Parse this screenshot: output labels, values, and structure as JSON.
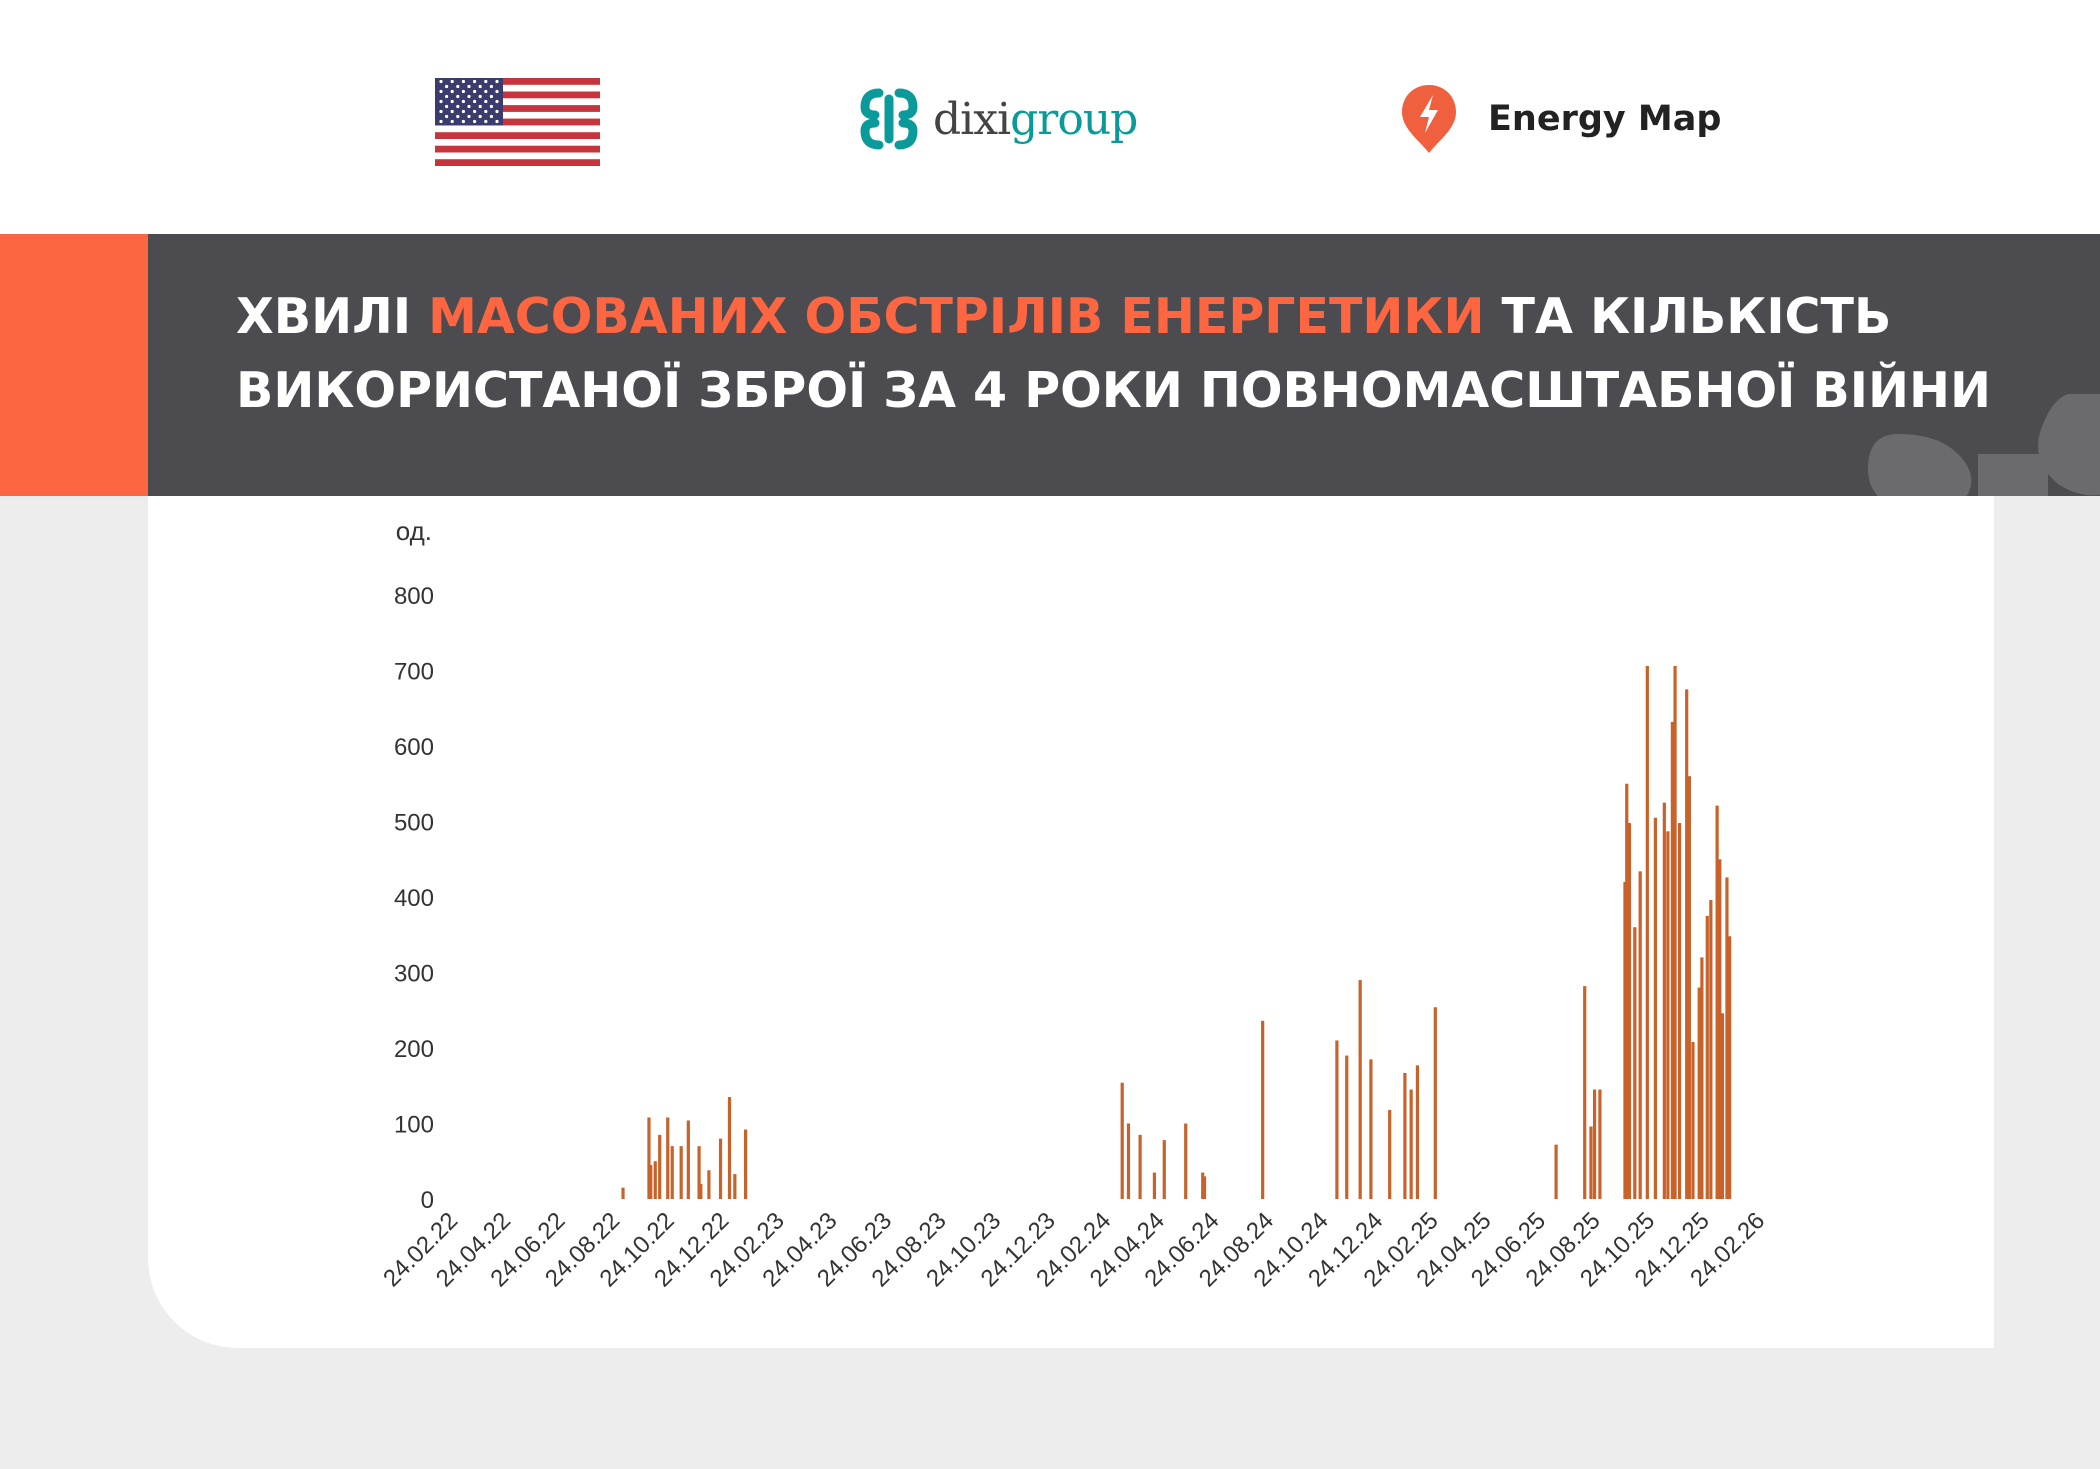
{
  "header": {
    "logos": [
      {
        "name": "us-flag",
        "label": ""
      },
      {
        "name": "dixigroup",
        "label_a": "dixi",
        "label_b": "group"
      },
      {
        "name": "energy-map",
        "label": "Energy Map"
      }
    ]
  },
  "banner": {
    "title_part1": "ХВИЛІ ",
    "title_accent": "МАСОВАНИХ ОБСТРІЛІВ ЕНЕРГЕТИКИ",
    "title_part2": " ТА КІЛЬКІСТЬ",
    "title_line2": "ВИКОРИСТАНОЇ ЗБРОЇ ЗА 4 РОКИ ПОВНОМАСШТАБНОЇ ВІЙНИ"
  },
  "colors": {
    "accent": "#fd6640",
    "banner_dark": "#4c4b50",
    "bar": "#c8622a",
    "background": "#ededed"
  },
  "chart_data": {
    "type": "bar",
    "ylabel": "од.",
    "ylim": [
      0,
      800
    ],
    "yticks": [
      0,
      100,
      200,
      300,
      400,
      500,
      600,
      700,
      800
    ],
    "xlim": [
      "2022-02-24",
      "2026-02-24"
    ],
    "xticks": [
      "24.02.22",
      "24.04.22",
      "24.06.22",
      "24.08.22",
      "24.10.22",
      "24.12.22",
      "24.02.23",
      "24.04.23",
      "24.06.23",
      "24.08.23",
      "24.10.23",
      "24.12.23",
      "24.02.24",
      "24.04.24",
      "24.06.24",
      "24.08.24",
      "24.10.24",
      "24.12.24",
      "24.02.25",
      "24.04.25",
      "24.06.25",
      "24.08.25",
      "24.10.25",
      "24.12.25",
      "24.02.26"
    ],
    "grid": false,
    "points": [
      {
        "date": "2022-09-11",
        "value": 15
      },
      {
        "date": "2022-10-10",
        "value": 108
      },
      {
        "date": "2022-10-12",
        "value": 45
      },
      {
        "date": "2022-10-17",
        "value": 50
      },
      {
        "date": "2022-10-22",
        "value": 85
      },
      {
        "date": "2022-10-31",
        "value": 108
      },
      {
        "date": "2022-11-05",
        "value": 70
      },
      {
        "date": "2022-11-15",
        "value": 70
      },
      {
        "date": "2022-11-23",
        "value": 104
      },
      {
        "date": "2022-12-05",
        "value": 70
      },
      {
        "date": "2022-12-07",
        "value": 20
      },
      {
        "date": "2022-12-16",
        "value": 38
      },
      {
        "date": "2022-12-29",
        "value": 80
      },
      {
        "date": "2023-01-08",
        "value": 135
      },
      {
        "date": "2023-01-14",
        "value": 33
      },
      {
        "date": "2023-01-26",
        "value": 92
      },
      {
        "date": "2024-03-22",
        "value": 154
      },
      {
        "date": "2024-03-29",
        "value": 100
      },
      {
        "date": "2024-04-11",
        "value": 85
      },
      {
        "date": "2024-04-27",
        "value": 35
      },
      {
        "date": "2024-05-08",
        "value": 78
      },
      {
        "date": "2024-06-01",
        "value": 100
      },
      {
        "date": "2024-06-20",
        "value": 35
      },
      {
        "date": "2024-06-22",
        "value": 30
      },
      {
        "date": "2024-08-26",
        "value": 236
      },
      {
        "date": "2024-11-17",
        "value": 210
      },
      {
        "date": "2024-11-28",
        "value": 190
      },
      {
        "date": "2024-12-13",
        "value": 290
      },
      {
        "date": "2024-12-25",
        "value": 185
      },
      {
        "date": "2025-01-15",
        "value": 118
      },
      {
        "date": "2025-02-01",
        "value": 167
      },
      {
        "date": "2025-02-08",
        "value": 145
      },
      {
        "date": "2025-02-15",
        "value": 177
      },
      {
        "date": "2025-03-07",
        "value": 254
      },
      {
        "date": "2025-07-20",
        "value": 72
      },
      {
        "date": "2025-08-21",
        "value": 282
      },
      {
        "date": "2025-08-28",
        "value": 96
      },
      {
        "date": "2025-09-01",
        "value": 145
      },
      {
        "date": "2025-09-07",
        "value": 145
      },
      {
        "date": "2025-10-05",
        "value": 420
      },
      {
        "date": "2025-10-07",
        "value": 550
      },
      {
        "date": "2025-10-10",
        "value": 498
      },
      {
        "date": "2025-10-16",
        "value": 360
      },
      {
        "date": "2025-10-22",
        "value": 434
      },
      {
        "date": "2025-10-30",
        "value": 706
      },
      {
        "date": "2025-11-08",
        "value": 505
      },
      {
        "date": "2025-11-18",
        "value": 525
      },
      {
        "date": "2025-11-22",
        "value": 487
      },
      {
        "date": "2025-11-27",
        "value": 632
      },
      {
        "date": "2025-11-30",
        "value": 706
      },
      {
        "date": "2025-12-05",
        "value": 498
      },
      {
        "date": "2025-12-13",
        "value": 675
      },
      {
        "date": "2025-12-16",
        "value": 560
      },
      {
        "date": "2025-12-20",
        "value": 208
      },
      {
        "date": "2025-12-27",
        "value": 280
      },
      {
        "date": "2025-12-30",
        "value": 320
      },
      {
        "date": "2026-01-05",
        "value": 375
      },
      {
        "date": "2026-01-09",
        "value": 396
      },
      {
        "date": "2026-01-16",
        "value": 521
      },
      {
        "date": "2026-01-19",
        "value": 450
      },
      {
        "date": "2026-01-22",
        "value": 246
      },
      {
        "date": "2026-01-27",
        "value": 426
      },
      {
        "date": "2026-01-30",
        "value": 348
      }
    ]
  }
}
